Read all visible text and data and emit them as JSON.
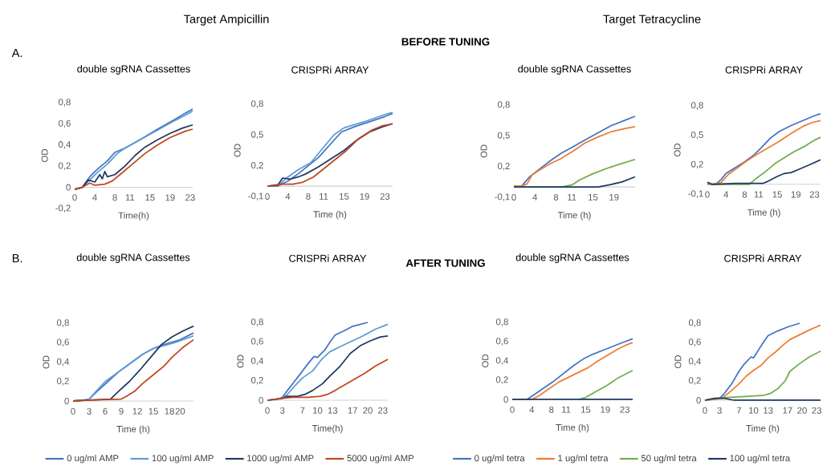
{
  "chart_data": [
    {
      "type": "line",
      "title": "double sgRNA Cassettes",
      "xlabel": "Time(h)",
      "ylabel": "OD",
      "annotations": [
        "A.",
        "Target Ampicillin",
        "BEFORE TUNING"
      ],
      "xlim": [
        0,
        23.5
      ],
      "ylim": [
        -0.2,
        0.8
      ],
      "xticks": [
        0,
        4,
        8,
        11,
        15,
        19,
        23
      ],
      "yticks": [
        {
          "value": -0.2,
          "label": "-0,2"
        },
        0,
        {
          "value": 0.2,
          "label": "0,2"
        },
        {
          "value": 0.4,
          "label": "0,4"
        },
        {
          "value": 0.6,
          "label": "0,6"
        },
        {
          "value": 0.8,
          "label": "0,8"
        }
      ],
      "series": [
        {
          "color": "#4472c4",
          "x": [
            0,
            1.5,
            3,
            4.5,
            6.5,
            8,
            10,
            13,
            16.5,
            19.5,
            22,
            23.5
          ],
          "values": [
            -0.02,
            0,
            0.1,
            0.17,
            0.25,
            0.33,
            0.37,
            0.45,
            0.55,
            0.63,
            0.7,
            0.74
          ]
        },
        {
          "color": "#5b9bd5",
          "x": [
            0,
            1.5,
            3,
            4.5,
            6.5,
            8.5,
            10,
            13,
            16.5,
            19.5,
            22,
            23.5
          ],
          "values": [
            -0.02,
            0,
            0.07,
            0.14,
            0.22,
            0.32,
            0.37,
            0.45,
            0.54,
            0.62,
            0.68,
            0.72
          ]
        },
        {
          "color": "#1f3864",
          "x": [
            0,
            1.5,
            2.7,
            4,
            5,
            5.5,
            6,
            6.5,
            8,
            10,
            12,
            14,
            16.5,
            19,
            21.5,
            23.5
          ],
          "values": [
            -0.02,
            0,
            0.07,
            0.05,
            0.12,
            0.08,
            0.15,
            0.1,
            0.12,
            0.2,
            0.3,
            0.38,
            0.45,
            0.51,
            0.56,
            0.59
          ]
        },
        {
          "color": "#c0461f",
          "x": [
            0,
            1.5,
            3,
            4,
            6,
            7.5,
            9,
            11.5,
            14,
            16.5,
            19,
            22,
            23.5
          ],
          "values": [
            -0.02,
            0,
            0.04,
            0.02,
            0.03,
            0.06,
            0.12,
            0.22,
            0.32,
            0.4,
            0.47,
            0.53,
            0.55
          ]
        }
      ]
    },
    {
      "type": "line",
      "title": "CRISPRi ARRAY",
      "xlabel": "Time (h)",
      "ylabel": "OD",
      "xlim": [
        0,
        24.5
      ],
      "ylim": [
        -0.1,
        0.8
      ],
      "xticks": [
        0,
        4,
        8,
        11,
        15,
        19,
        23
      ],
      "yticks": [
        {
          "value": -0.1,
          "label": "-0,1"
        },
        {
          "value": 0.2,
          "label": "0,2"
        },
        {
          "value": 0.5,
          "label": "0,5"
        },
        {
          "value": 0.8,
          "label": "0,8"
        }
      ],
      "series": [
        {
          "color": "#4472c4",
          "x": [
            0,
            2,
            4,
            6,
            8,
            10,
            12.5,
            14.5,
            17,
            20,
            23,
            24.5
          ],
          "values": [
            0,
            0,
            0.05,
            0.12,
            0.2,
            0.28,
            0.42,
            0.53,
            0.58,
            0.63,
            0.68,
            0.71
          ]
        },
        {
          "color": "#5b9bd5",
          "x": [
            0,
            2,
            4,
            6,
            8.5,
            9,
            11,
            13,
            15,
            19,
            23,
            24.5
          ],
          "values": [
            0,
            0,
            0.09,
            0.16,
            0.23,
            0.26,
            0.38,
            0.5,
            0.57,
            0.63,
            0.7,
            0.72
          ]
        },
        {
          "color": "#1f3864",
          "x": [
            0,
            2,
            3,
            4.5,
            6,
            7.5,
            10,
            12.5,
            15,
            17.5,
            20,
            22.5,
            24.5
          ],
          "values": [
            0,
            0.01,
            0.08,
            0.07,
            0.09,
            0.12,
            0.19,
            0.27,
            0.35,
            0.45,
            0.53,
            0.58,
            0.61
          ]
        },
        {
          "color": "#c0461f",
          "x": [
            0,
            2.5,
            5,
            7,
            9,
            11,
            13,
            15.5,
            18,
            20.5,
            22.5,
            24.5
          ],
          "values": [
            0,
            0.02,
            0.02,
            0.04,
            0.09,
            0.17,
            0.25,
            0.35,
            0.47,
            0.55,
            0.59,
            0.61
          ]
        }
      ]
    },
    {
      "type": "line",
      "title": "double sgRNA Cassettes",
      "xlabel": "Time (h)",
      "ylabel": "OD",
      "annotations": [
        "Target Tetracycline"
      ],
      "xlim": [
        0,
        23
      ],
      "ylim": [
        -0.1,
        0.8
      ],
      "xticks": [
        0,
        4,
        8,
        11,
        15,
        19
      ],
      "yticks": [
        {
          "value": -0.1,
          "label": "-0,1"
        },
        {
          "value": 0.2,
          "label": "0,2"
        },
        {
          "value": 0.5,
          "label": "0,5"
        },
        {
          "value": 0.8,
          "label": "0,8"
        }
      ],
      "series": [
        {
          "color": "#4472c4",
          "x": [
            0,
            1.5,
            3,
            4.5,
            5.5,
            7,
            9,
            11.5,
            13.5,
            16,
            18.5,
            21,
            23
          ],
          "values": [
            0.01,
            0.01,
            0.1,
            0.16,
            0.2,
            0.26,
            0.33,
            0.4,
            0.46,
            0.53,
            0.6,
            0.65,
            0.69
          ]
        },
        {
          "color": "#ed7d31",
          "x": [
            0,
            1.5,
            2.5,
            3.5,
            5,
            7,
            9,
            11.5,
            13.5,
            16,
            18.5,
            21,
            23
          ],
          "values": [
            0.01,
            0.01,
            0.03,
            0.12,
            0.17,
            0.23,
            0.28,
            0.36,
            0.43,
            0.49,
            0.54,
            0.57,
            0.59
          ]
        },
        {
          "color": "#70ad47",
          "x": [
            0,
            9,
            11,
            12.5,
            15,
            17.5,
            20.5,
            23
          ],
          "values": [
            0,
            0,
            0.02,
            0.07,
            0.13,
            0.18,
            0.23,
            0.27
          ]
        },
        {
          "color": "#203864",
          "x": [
            0,
            16,
            18,
            20.5,
            23
          ],
          "values": [
            0,
            0,
            0.02,
            0.05,
            0.1
          ]
        }
      ]
    },
    {
      "type": "line",
      "title": "CRISPRi ARRAY",
      "xlabel": "Time (h)",
      "ylabel": "OD",
      "xlim": [
        0,
        24.3
      ],
      "ylim": [
        -0.1,
        0.8
      ],
      "xticks": [
        0,
        4,
        8,
        11,
        15,
        19,
        23
      ],
      "yticks": [
        {
          "value": -0.1,
          "label": "-0,1"
        },
        {
          "value": 0.2,
          "label": "0,2"
        },
        {
          "value": 0.5,
          "label": "0,5"
        },
        {
          "value": 0.8,
          "label": "0,8"
        }
      ],
      "series": [
        {
          "color": "#4472c4",
          "x": [
            0,
            1,
            2,
            3,
            4,
            6,
            8,
            10,
            11.5,
            13.5,
            15.5,
            18,
            20.5,
            23,
            24.3
          ],
          "values": [
            0.02,
            0,
            0.01,
            0.05,
            0.11,
            0.17,
            0.23,
            0.3,
            0.37,
            0.47,
            0.54,
            0.6,
            0.65,
            0.7,
            0.72
          ]
        },
        {
          "color": "#ed7d31",
          "x": [
            0,
            1,
            3,
            4.5,
            6.5,
            8.5,
            10.5,
            13,
            15.5,
            18,
            20.5,
            22.5,
            24.3
          ],
          "values": [
            0.01,
            0,
            0.02,
            0.1,
            0.17,
            0.24,
            0.3,
            0.37,
            0.44,
            0.52,
            0.59,
            0.63,
            0.65
          ]
        },
        {
          "color": "#70ad47",
          "x": [
            0,
            9,
            10.5,
            12.5,
            14.5,
            16.5,
            18.5,
            21,
            23,
            24.3
          ],
          "values": [
            0,
            0,
            0.06,
            0.13,
            0.21,
            0.27,
            0.33,
            0.39,
            0.45,
            0.48
          ]
        },
        {
          "color": "#203864",
          "x": [
            0,
            1,
            6,
            12,
            13,
            15,
            16.5,
            18,
            19.5,
            22,
            24.3
          ],
          "values": [
            0.02,
            0,
            0.01,
            0.01,
            0.03,
            0.08,
            0.11,
            0.12,
            0.15,
            0.2,
            0.25
          ]
        }
      ]
    },
    {
      "type": "line",
      "title": "double sgRNA Cassettes",
      "xlabel": "Time (h)",
      "ylabel": "OD",
      "annotations": [
        "B.",
        "AFTER TUNING"
      ],
      "legend": "bottom",
      "xlim": [
        0,
        22.5
      ],
      "ylim": [
        0,
        0.8
      ],
      "xticks": [
        0,
        3,
        6,
        9,
        12,
        15,
        18,
        20
      ],
      "yticks": [
        0,
        {
          "value": 0.2,
          "label": "0,2"
        },
        {
          "value": 0.4,
          "label": "0,4"
        },
        {
          "value": 0.6,
          "label": "0,6"
        },
        {
          "value": 0.8,
          "label": "0,8"
        }
      ],
      "series": [
        {
          "name": "0 ug/ml AMP",
          "color": "#4472c4",
          "x": [
            0,
            2,
            3,
            4.5,
            6.5,
            8.5,
            11,
            13,
            15,
            17,
            20,
            22.5
          ],
          "values": [
            0,
            0.01,
            0.02,
            0.1,
            0.2,
            0.3,
            0.4,
            0.48,
            0.54,
            0.58,
            0.63,
            0.7
          ]
        },
        {
          "name": "100 ug/ml AMP",
          "color": "#5b9bd5",
          "x": [
            0,
            2,
            3,
            4.3,
            6,
            8.5,
            11,
            13,
            15,
            17,
            19,
            21,
            22.5
          ],
          "values": [
            0,
            0.01,
            0.02,
            0.1,
            0.2,
            0.3,
            0.4,
            0.48,
            0.54,
            0.57,
            0.6,
            0.64,
            0.67
          ]
        },
        {
          "name": "1000 ug/ml AMP",
          "color": "#1f3864",
          "x": [
            0,
            3,
            7,
            8.5,
            10.5,
            12.5,
            14.5,
            16.5,
            18.5,
            20.5,
            22.5
          ],
          "values": [
            0,
            0.01,
            0.02,
            0.1,
            0.2,
            0.32,
            0.45,
            0.58,
            0.66,
            0.72,
            0.77
          ]
        },
        {
          "name": "5000 ug/ml AMP",
          "color": "#c0461f",
          "x": [
            0,
            3,
            9,
            10,
            11.5,
            13,
            15,
            17,
            18.5,
            20.5,
            22.5
          ],
          "values": [
            0,
            0.01,
            0.02,
            0.05,
            0.1,
            0.18,
            0.27,
            0.36,
            0.45,
            0.55,
            0.63
          ]
        }
      ]
    },
    {
      "type": "line",
      "title": "CRISPRi ARRAY",
      "xlabel": "Time(h)",
      "ylabel": "OD",
      "xlim": [
        0,
        24
      ],
      "ylim": [
        0,
        0.8
      ],
      "xticks": [
        0,
        3,
        7,
        10,
        13,
        17,
        20,
        23
      ],
      "yticks": [
        0,
        {
          "value": 0.2,
          "label": "0,2"
        },
        {
          "value": 0.4,
          "label": "0,4"
        },
        {
          "value": 0.6,
          "label": "0,6"
        },
        {
          "value": 0.8,
          "label": "0,8"
        }
      ],
      "series": [
        {
          "color": "#4472c4",
          "x": [
            0,
            2,
            3,
            4,
            5.5,
            7,
            8,
            9.3,
            10,
            11.5,
            12.5,
            13.5,
            15.5,
            17,
            20
          ],
          "values": [
            0,
            0.01,
            0.03,
            0.1,
            0.2,
            0.3,
            0.37,
            0.45,
            0.44,
            0.52,
            0.6,
            0.67,
            0.72,
            0.76,
            0.8
          ]
        },
        {
          "color": "#5b9bd5",
          "x": [
            0,
            2,
            3,
            4,
            5.5,
            7,
            9,
            10.5,
            11,
            12.5,
            14.5,
            16.5,
            19,
            21.5,
            24
          ],
          "values": [
            0,
            0.01,
            0.02,
            0.06,
            0.15,
            0.23,
            0.3,
            0.4,
            0.43,
            0.5,
            0.55,
            0.6,
            0.66,
            0.73,
            0.78
          ]
        },
        {
          "color": "#1f3864",
          "x": [
            0,
            3,
            4,
            6,
            7.5,
            9,
            11,
            12.5,
            14.5,
            16.5,
            18.5,
            20.5,
            22.5,
            24
          ],
          "values": [
            0,
            0.02,
            0.04,
            0.04,
            0.06,
            0.1,
            0.17,
            0.25,
            0.35,
            0.48,
            0.56,
            0.61,
            0.65,
            0.66
          ]
        },
        {
          "color": "#c0461f",
          "x": [
            0,
            3,
            5,
            8,
            10.5,
            12,
            13.5,
            15.5,
            17.5,
            19.5,
            21.5,
            24
          ],
          "values": [
            0,
            0.02,
            0.03,
            0.03,
            0.04,
            0.06,
            0.1,
            0.16,
            0.22,
            0.28,
            0.35,
            0.42
          ]
        }
      ]
    },
    {
      "type": "line",
      "title": "double sgRNA Cassettes",
      "xlabel": "Time (h)",
      "ylabel": "OD",
      "legend": "bottom",
      "xlim": [
        0,
        24.6
      ],
      "ylim": [
        0,
        0.8
      ],
      "xticks": [
        0,
        4,
        8,
        11,
        15,
        19,
        23
      ],
      "yticks": [
        0,
        {
          "value": 0.2,
          "label": "0,2"
        },
        {
          "value": 0.4,
          "label": "0,4"
        },
        {
          "value": 0.6,
          "label": "0,6"
        },
        {
          "value": 0.8,
          "label": "0,8"
        }
      ],
      "series": [
        {
          "name": "0 ug/ml tetra",
          "color": "#4472c4",
          "x": [
            0,
            3,
            4.5,
            6.5,
            8.5,
            10.5,
            12.5,
            14.5,
            16.5,
            18.5,
            21,
            23,
            24.6
          ],
          "values": [
            0,
            0,
            0.05,
            0.12,
            0.19,
            0.27,
            0.35,
            0.42,
            0.47,
            0.51,
            0.56,
            0.6,
            0.63
          ]
        },
        {
          "name": "1 ug/ml tetra",
          "color": "#ed7d31",
          "x": [
            0,
            4,
            5.5,
            7.5,
            9.5,
            11.5,
            13.5,
            15.5,
            17.5,
            19.5,
            21.5,
            23.5,
            24.6
          ],
          "values": [
            0,
            0,
            0.04,
            0.11,
            0.18,
            0.23,
            0.28,
            0.33,
            0.4,
            0.46,
            0.52,
            0.57,
            0.59
          ]
        },
        {
          "name": "50 ug/ml tetra",
          "color": "#70ad47",
          "x": [
            13.5,
            15,
            17,
            19.5,
            21.5,
            24.6
          ],
          "values": [
            0,
            0.02,
            0.08,
            0.15,
            0.22,
            0.3
          ]
        },
        {
          "name": "100 ug/ml tetra",
          "color": "#203864",
          "x": [
            0,
            24.6
          ],
          "values": [
            0,
            0
          ]
        }
      ]
    },
    {
      "type": "line",
      "title": "CRISPRi ARRAY",
      "xlabel": "Time (h)",
      "ylabel": "OD",
      "xlim": [
        0,
        23.8
      ],
      "ylim": [
        0,
        0.8
      ],
      "xticks": [
        0,
        3,
        7,
        10,
        13,
        17,
        20,
        23
      ],
      "yticks": [
        0,
        {
          "value": 0.2,
          "label": "0,2"
        },
        {
          "value": 0.4,
          "label": "0,4"
        },
        {
          "value": 0.6,
          "label": "0,6"
        },
        {
          "value": 0.8,
          "label": "0,8"
        }
      ],
      "series": [
        {
          "color": "#4472c4",
          "x": [
            0,
            2,
            3,
            4,
            5.5,
            7,
            8,
            9.5,
            10,
            11,
            12,
            13,
            15,
            17,
            19.5
          ],
          "values": [
            0,
            0.01,
            0.02,
            0.07,
            0.17,
            0.3,
            0.37,
            0.45,
            0.44,
            0.52,
            0.6,
            0.67,
            0.72,
            0.76,
            0.8
          ]
        },
        {
          "color": "#ed7d31",
          "x": [
            0,
            2,
            3.5,
            5,
            7,
            8.5,
            10,
            11.5,
            13,
            14.5,
            16,
            17.5,
            19.5,
            21.5,
            23.8
          ],
          "values": [
            0,
            0.01,
            0.02,
            0.08,
            0.17,
            0.25,
            0.31,
            0.36,
            0.44,
            0.5,
            0.57,
            0.63,
            0.68,
            0.73,
            0.78
          ]
        },
        {
          "color": "#70ad47",
          "x": [
            0,
            2,
            5,
            9,
            12,
            13.5,
            15,
            16.5,
            17.5,
            19.5,
            21.5,
            23.8
          ],
          "values": [
            0,
            0.02,
            0.03,
            0.04,
            0.05,
            0.07,
            0.12,
            0.2,
            0.3,
            0.38,
            0.45,
            0.51
          ]
        },
        {
          "color": "#203864",
          "x": [
            0,
            2,
            4,
            6,
            23.8
          ],
          "values": [
            0,
            0.02,
            0.02,
            0,
            0
          ]
        }
      ]
    }
  ]
}
